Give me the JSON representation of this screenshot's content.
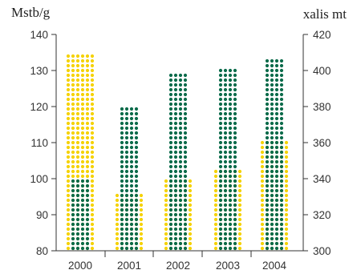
{
  "chart_data": {
    "type": "bar",
    "categories": [
      "2000",
      "2001",
      "2002",
      "2003",
      "2004"
    ],
    "series": [
      {
        "axis": "left",
        "color": "#f5d200",
        "values": [
          134,
          96,
          100.5,
          102,
          110
        ]
      },
      {
        "axis": "right",
        "color": "#0a6b4a",
        "values": [
          341,
          380,
          399,
          402,
          406
        ]
      }
    ],
    "y_left": {
      "label": "Mstb/g",
      "min": 80,
      "max": 140,
      "ticks": [
        80,
        90,
        100,
        110,
        120,
        130,
        140
      ]
    },
    "y_right": {
      "label": "xalis mt",
      "min": 300,
      "max": 420,
      "ticks": [
        300,
        320,
        340,
        360,
        380,
        400,
        420
      ]
    },
    "grid": false,
    "legend": "none"
  }
}
